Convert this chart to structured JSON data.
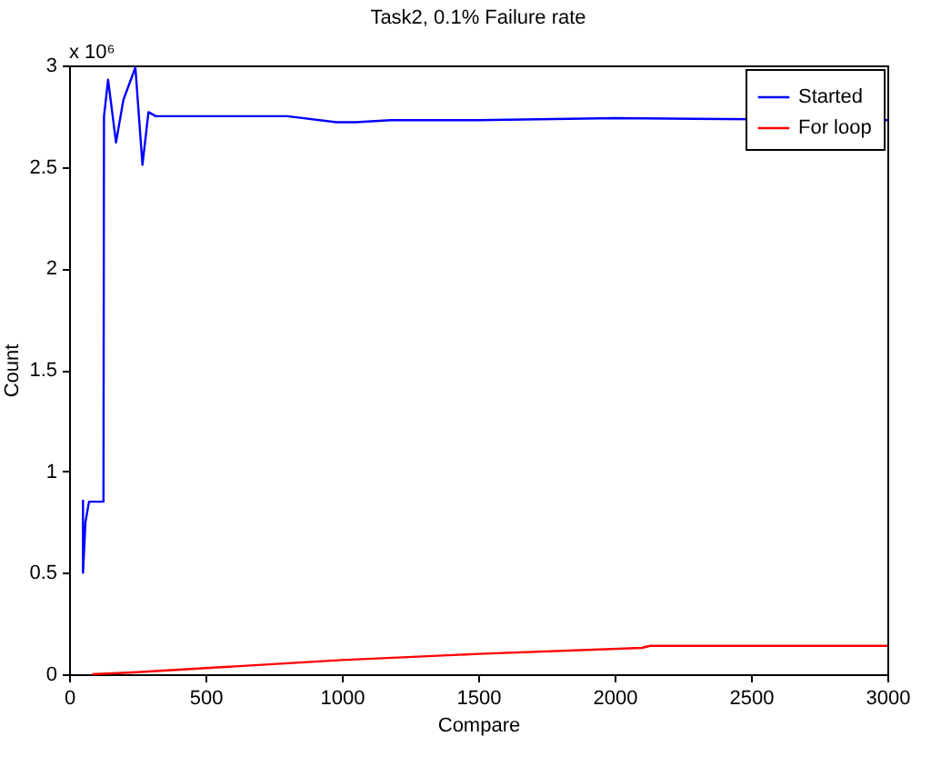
{
  "chart_data": {
    "type": "line",
    "title": "Task2, 0.1% Failure rate",
    "xlabel": "Compare",
    "ylabel": "Count",
    "annotations": [
      "x 10⁶"
    ],
    "xlim": [
      0,
      3000
    ],
    "xticks": [
      0,
      500,
      1000,
      1500,
      2000,
      2500,
      3000
    ],
    "ylim": [
      0,
      3
    ],
    "yticks": [
      0,
      0.5,
      1,
      1.5,
      2,
      2.5,
      3
    ],
    "grid": false,
    "legend": "top right",
    "line_style": "solid",
    "series": [
      {
        "name": "Started",
        "color": "#0000ff",
        "x": [
          51,
          51,
          60,
          73,
          126,
          128,
          143,
          172,
          199,
          243,
          269,
          291,
          318,
          600,
          800,
          980,
          1050,
          1179,
          1500,
          2000,
          3000
        ],
        "values": [
          0.86,
          0.5,
          0.75,
          0.85,
          0.85,
          2.75,
          2.93,
          2.62,
          2.83,
          2.99,
          2.51,
          2.77,
          2.75,
          2.75,
          2.75,
          2.72,
          2.72,
          2.73,
          2.73,
          2.74,
          2.73
        ]
      },
      {
        "name": "For loop",
        "color": "#ff0000",
        "x": [
          85,
          250,
          500,
          1000,
          1500,
          2100,
          2130,
          3000
        ],
        "values": [
          0.0,
          0.01,
          0.03,
          0.07,
          0.1,
          0.13,
          0.14,
          0.14
        ]
      }
    ]
  }
}
